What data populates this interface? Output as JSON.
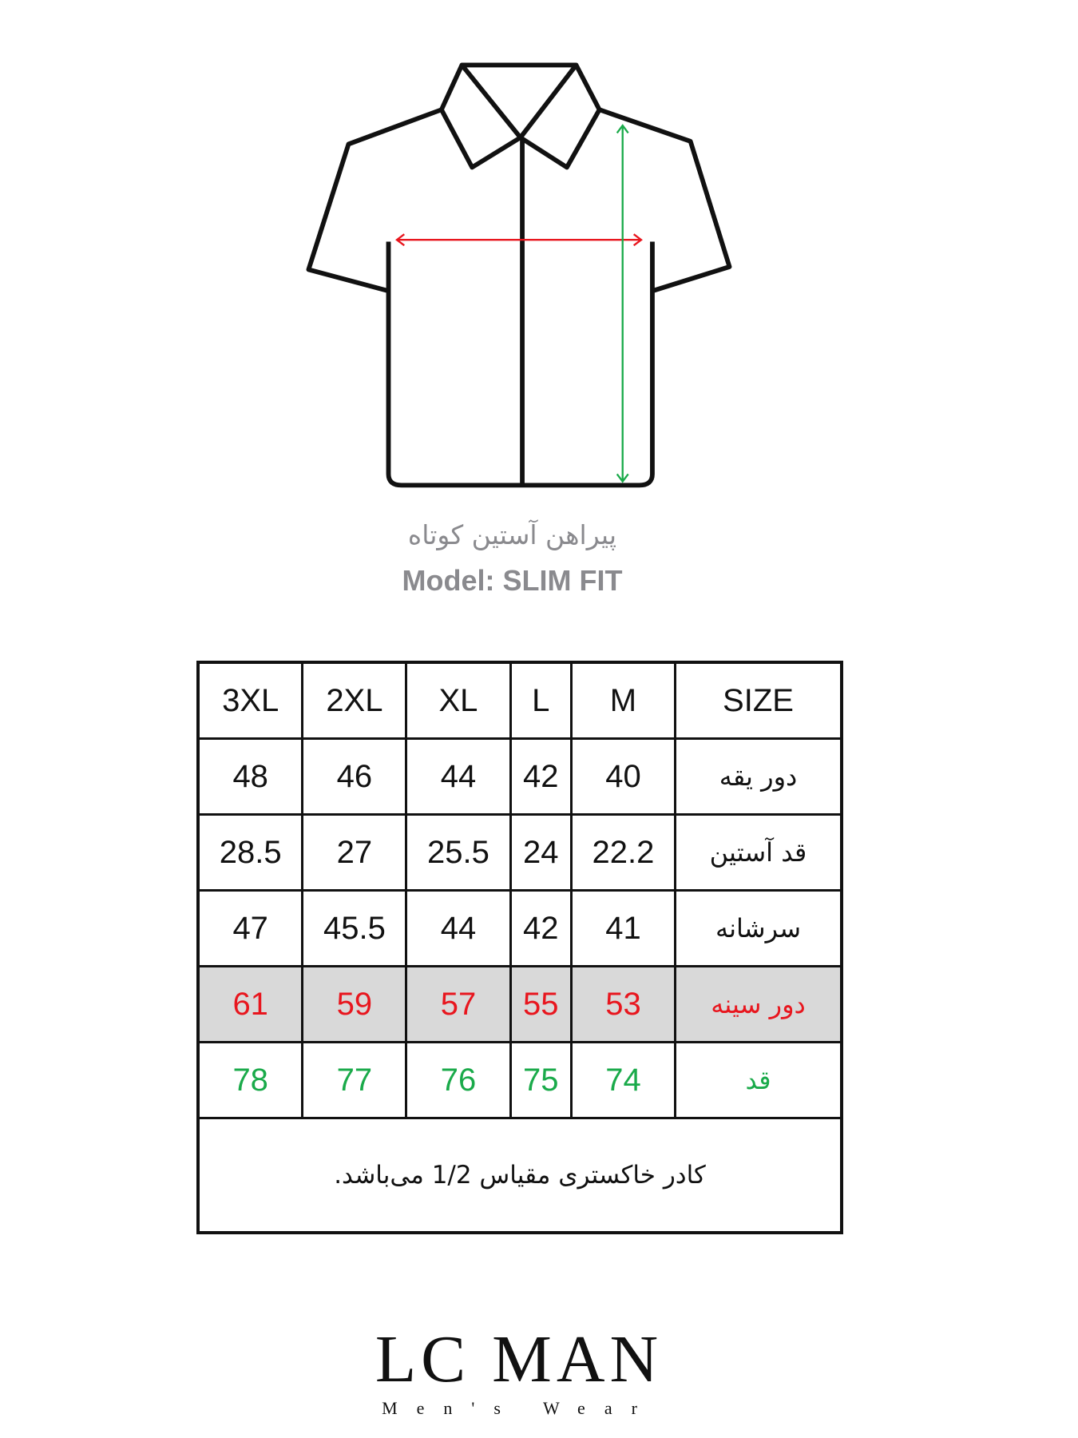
{
  "caption": {
    "title_fa": "پیراهن آستین کوتاه",
    "model": "Model: SLIM FIT"
  },
  "colors": {
    "chest": "#e8161e",
    "length": "#1aaa4a",
    "highlight_row": "#d9d9d9"
  },
  "size_table": {
    "header": [
      "3XL",
      "2XL",
      "XL",
      "L",
      "M",
      "SIZE"
    ],
    "rows": [
      {
        "label": "دور یقه",
        "values": [
          "48",
          "46",
          "44",
          "42",
          "40"
        ]
      },
      {
        "label": "قد آستین",
        "values": [
          "28.5",
          "27",
          "25.5",
          "24",
          "22.2"
        ]
      },
      {
        "label": "سرشانه",
        "values": [
          "47",
          "45.5",
          "44",
          "42",
          "41"
        ]
      },
      {
        "label": "دور سینه",
        "values": [
          "61",
          "59",
          "57",
          "55",
          "53"
        ]
      },
      {
        "label": "قد",
        "values": [
          "78",
          "77",
          "76",
          "75",
          "74"
        ]
      }
    ],
    "note": "کادر خاکستری مقیاس 1/2 می‌باشد."
  },
  "logo": {
    "main": "LC MAN",
    "sub": "Men's Wear"
  }
}
